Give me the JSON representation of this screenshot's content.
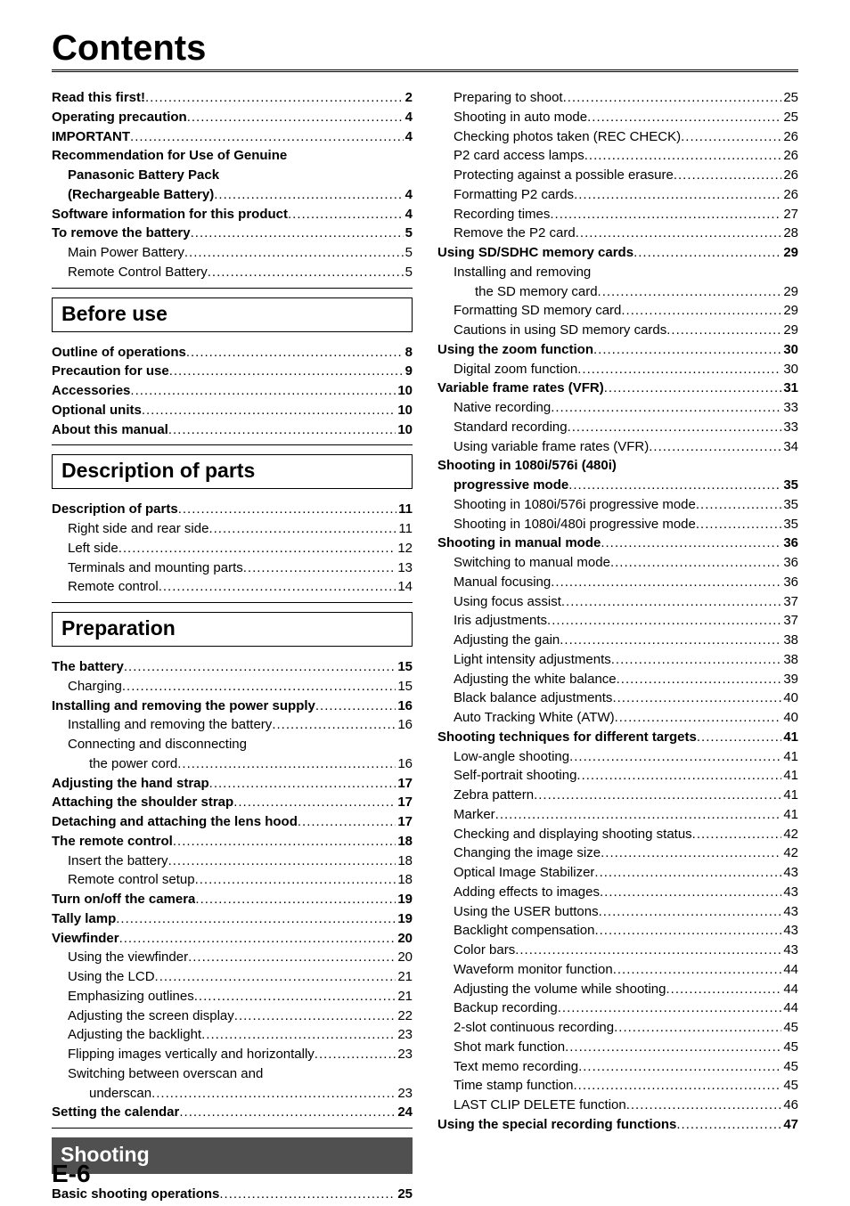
{
  "title": "Contents",
  "page_footer": "E-6",
  "columns": {
    "left": [
      {
        "type": "item",
        "text": "Read this first!",
        "page": "2",
        "bold": true,
        "indent": 0
      },
      {
        "type": "item",
        "text": "Operating precaution",
        "page": "4",
        "bold": true,
        "indent": 0
      },
      {
        "type": "item",
        "text": "IMPORTANT",
        "page": "4",
        "bold": true,
        "indent": 0
      },
      {
        "type": "textonly",
        "text": "Recommendation for Use of Genuine",
        "bold": true,
        "indent": 0
      },
      {
        "type": "textonly",
        "text": "Panasonic Battery Pack",
        "bold": true,
        "indent": 1
      },
      {
        "type": "item",
        "text": "(Rechargeable Battery)",
        "page": "4",
        "bold": true,
        "indent": 1
      },
      {
        "type": "item",
        "text": "Software information for this product",
        "page": "4",
        "bold": true,
        "indent": 0
      },
      {
        "type": "item",
        "text": "To remove the battery",
        "page": "5",
        "bold": true,
        "indent": 0
      },
      {
        "type": "item",
        "text": "Main Power Battery",
        "page": "5",
        "bold": false,
        "indent": 1
      },
      {
        "type": "item",
        "text": "Remote Control Battery",
        "page": "5",
        "bold": false,
        "indent": 1
      },
      {
        "type": "rule"
      },
      {
        "type": "section",
        "text": "Before use",
        "filled": false
      },
      {
        "type": "item",
        "text": "Outline of operations",
        "page": "8",
        "bold": true,
        "indent": 0
      },
      {
        "type": "item",
        "text": "Precaution for use",
        "page": "9",
        "bold": true,
        "indent": 0
      },
      {
        "type": "item",
        "text": "Accessories",
        "page": "10",
        "bold": true,
        "indent": 0
      },
      {
        "type": "item",
        "text": "Optional units",
        "page": "10",
        "bold": true,
        "indent": 0
      },
      {
        "type": "item",
        "text": "About this manual",
        "page": "10",
        "bold": true,
        "indent": 0
      },
      {
        "type": "rule"
      },
      {
        "type": "section",
        "text": "Description of parts",
        "filled": false
      },
      {
        "type": "item",
        "text": "Description of parts",
        "page": "11",
        "bold": true,
        "indent": 0
      },
      {
        "type": "item",
        "text": "Right side and rear side",
        "page": "11",
        "bold": false,
        "indent": 1
      },
      {
        "type": "item",
        "text": "Left side",
        "page": "12",
        "bold": false,
        "indent": 1
      },
      {
        "type": "item",
        "text": "Terminals and mounting parts",
        "page": "13",
        "bold": false,
        "indent": 1
      },
      {
        "type": "item",
        "text": "Remote control",
        "page": "14",
        "bold": false,
        "indent": 1
      },
      {
        "type": "rule"
      },
      {
        "type": "section",
        "text": "Preparation",
        "filled": false
      },
      {
        "type": "item",
        "text": "The battery",
        "page": "15",
        "bold": true,
        "indent": 0
      },
      {
        "type": "item",
        "text": "Charging",
        "page": "15",
        "bold": false,
        "indent": 1
      },
      {
        "type": "item",
        "text": "Installing and removing the power supply",
        "page": "16",
        "bold": true,
        "indent": 0
      },
      {
        "type": "item",
        "text": "Installing and removing the battery",
        "page": "16",
        "bold": false,
        "indent": 1
      },
      {
        "type": "textonly",
        "text": "Connecting and disconnecting",
        "bold": false,
        "indent": 1
      },
      {
        "type": "item",
        "text": "the power cord",
        "page": "16",
        "bold": false,
        "indent": 2
      },
      {
        "type": "item",
        "text": "Adjusting the hand strap",
        "page": "17",
        "bold": true,
        "indent": 0
      },
      {
        "type": "item",
        "text": "Attaching the shoulder strap",
        "page": "17",
        "bold": true,
        "indent": 0
      },
      {
        "type": "item",
        "text": "Detaching and attaching the lens hood",
        "page": "17",
        "bold": true,
        "indent": 0
      },
      {
        "type": "item",
        "text": "The remote control",
        "page": "18",
        "bold": true,
        "indent": 0
      },
      {
        "type": "item",
        "text": "Insert the battery",
        "page": "18",
        "bold": false,
        "indent": 1
      },
      {
        "type": "item",
        "text": "Remote control setup",
        "page": "18",
        "bold": false,
        "indent": 1
      },
      {
        "type": "item",
        "text": "Turn on/off the camera",
        "page": "19",
        "bold": true,
        "indent": 0
      },
      {
        "type": "item",
        "text": "Tally lamp",
        "page": "19",
        "bold": true,
        "indent": 0
      },
      {
        "type": "item",
        "text": "Viewfinder",
        "page": "20",
        "bold": true,
        "indent": 0
      },
      {
        "type": "item",
        "text": "Using the viewfinder",
        "page": "20",
        "bold": false,
        "indent": 1
      },
      {
        "type": "item",
        "text": "Using the LCD",
        "page": "21",
        "bold": false,
        "indent": 1
      },
      {
        "type": "item",
        "text": "Emphasizing outlines",
        "page": "21",
        "bold": false,
        "indent": 1
      },
      {
        "type": "item",
        "text": "Adjusting the screen display",
        "page": "22",
        "bold": false,
        "indent": 1
      },
      {
        "type": "item",
        "text": "Adjusting the backlight",
        "page": "23",
        "bold": false,
        "indent": 1
      },
      {
        "type": "item",
        "text": "Flipping images vertically and horizontally",
        "page": "23",
        "bold": false,
        "indent": 1
      },
      {
        "type": "textonly",
        "text": "Switching between overscan and",
        "bold": false,
        "indent": 1
      },
      {
        "type": "item",
        "text": "underscan",
        "page": "23",
        "bold": false,
        "indent": 2
      },
      {
        "type": "item",
        "text": "Setting the calendar",
        "page": "24",
        "bold": true,
        "indent": 0
      },
      {
        "type": "rule"
      },
      {
        "type": "section",
        "text": "Shooting",
        "filled": true
      },
      {
        "type": "item",
        "text": "Basic shooting operations",
        "page": "25",
        "bold": true,
        "indent": 0
      }
    ],
    "right": [
      {
        "type": "item",
        "text": "Preparing to shoot",
        "page": "25",
        "bold": false,
        "indent": 1
      },
      {
        "type": "item",
        "text": "Shooting in auto mode",
        "page": "25",
        "bold": false,
        "indent": 1
      },
      {
        "type": "item",
        "text": "Checking photos taken (REC CHECK)",
        "page": "26",
        "bold": false,
        "indent": 1
      },
      {
        "type": "item",
        "text": "P2 card access lamps",
        "page": "26",
        "bold": false,
        "indent": 1
      },
      {
        "type": "item",
        "text": "Protecting against a possible erasure",
        "page": "26",
        "bold": false,
        "indent": 1
      },
      {
        "type": "item",
        "text": "Formatting P2 cards",
        "page": "26",
        "bold": false,
        "indent": 1
      },
      {
        "type": "item",
        "text": "Recording times",
        "page": "27",
        "bold": false,
        "indent": 1
      },
      {
        "type": "item",
        "text": "Remove the P2 card",
        "page": "28",
        "bold": false,
        "indent": 1
      },
      {
        "type": "item",
        "text": "Using SD/SDHC memory cards",
        "page": "29",
        "bold": true,
        "indent": 0
      },
      {
        "type": "textonly",
        "text": "Installing and removing",
        "bold": false,
        "indent": 1
      },
      {
        "type": "item",
        "text": "the SD memory card",
        "page": "29",
        "bold": false,
        "indent": 2
      },
      {
        "type": "item",
        "text": "Formatting SD memory card",
        "page": "29",
        "bold": false,
        "indent": 1
      },
      {
        "type": "item",
        "text": "Cautions in using SD memory cards",
        "page": "29",
        "bold": false,
        "indent": 1
      },
      {
        "type": "item",
        "text": "Using the zoom function",
        "page": "30",
        "bold": true,
        "indent": 0
      },
      {
        "type": "item",
        "text": "Digital zoom function",
        "page": "30",
        "bold": false,
        "indent": 1
      },
      {
        "type": "item",
        "text": "Variable frame rates (VFR)",
        "page": "31",
        "bold": true,
        "indent": 0
      },
      {
        "type": "item",
        "text": "Native recording",
        "page": "33",
        "bold": false,
        "indent": 1
      },
      {
        "type": "item",
        "text": "Standard recording",
        "page": "33",
        "bold": false,
        "indent": 1
      },
      {
        "type": "item",
        "text": "Using variable frame rates (VFR)",
        "page": "34",
        "bold": false,
        "indent": 1
      },
      {
        "type": "textonly",
        "text": "Shooting in 1080i/576i (480i)",
        "bold": true,
        "indent": 0
      },
      {
        "type": "item",
        "text": "progressive mode",
        "page": "35",
        "bold": true,
        "indent": 1
      },
      {
        "type": "item",
        "text": "Shooting in 1080i/576i progressive mode",
        "page": "35",
        "bold": false,
        "indent": 1
      },
      {
        "type": "item",
        "text": "Shooting in 1080i/480i progressive mode",
        "page": "35",
        "bold": false,
        "indent": 1
      },
      {
        "type": "item",
        "text": "Shooting in manual mode",
        "page": "36",
        "bold": true,
        "indent": 0
      },
      {
        "type": "item",
        "text": "Switching to manual mode",
        "page": "36",
        "bold": false,
        "indent": 1
      },
      {
        "type": "item",
        "text": "Manual focusing",
        "page": "36",
        "bold": false,
        "indent": 1
      },
      {
        "type": "item",
        "text": "Using focus assist",
        "page": "37",
        "bold": false,
        "indent": 1
      },
      {
        "type": "item",
        "text": "Iris adjustments",
        "page": "37",
        "bold": false,
        "indent": 1
      },
      {
        "type": "item",
        "text": "Adjusting the gain",
        "page": "38",
        "bold": false,
        "indent": 1
      },
      {
        "type": "item",
        "text": "Light intensity adjustments",
        "page": "38",
        "bold": false,
        "indent": 1
      },
      {
        "type": "item",
        "text": "Adjusting the white balance",
        "page": "39",
        "bold": false,
        "indent": 1
      },
      {
        "type": "item",
        "text": "Black balance adjustments",
        "page": "40",
        "bold": false,
        "indent": 1
      },
      {
        "type": "item",
        "text": "Auto Tracking White (ATW)",
        "page": "40",
        "bold": false,
        "indent": 1
      },
      {
        "type": "item",
        "text": "Shooting techniques for different targets",
        "page": "41",
        "bold": true,
        "indent": 0
      },
      {
        "type": "item",
        "text": "Low-angle shooting",
        "page": "41",
        "bold": false,
        "indent": 1
      },
      {
        "type": "item",
        "text": "Self-portrait shooting",
        "page": "41",
        "bold": false,
        "indent": 1
      },
      {
        "type": "item",
        "text": "Zebra pattern",
        "page": "41",
        "bold": false,
        "indent": 1
      },
      {
        "type": "item",
        "text": "Marker",
        "page": "41",
        "bold": false,
        "indent": 1
      },
      {
        "type": "item",
        "text": "Checking and displaying shooting status",
        "page": "42",
        "bold": false,
        "indent": 1
      },
      {
        "type": "item",
        "text": "Changing the image size",
        "page": "42",
        "bold": false,
        "indent": 1
      },
      {
        "type": "item",
        "text": "Optical Image Stabilizer",
        "page": "43",
        "bold": false,
        "indent": 1
      },
      {
        "type": "item",
        "text": "Adding effects to images",
        "page": "43",
        "bold": false,
        "indent": 1
      },
      {
        "type": "item",
        "text": "Using the USER buttons",
        "page": "43",
        "bold": false,
        "indent": 1
      },
      {
        "type": "item",
        "text": "Backlight compensation",
        "page": "43",
        "bold": false,
        "indent": 1
      },
      {
        "type": "item",
        "text": "Color bars",
        "page": "43",
        "bold": false,
        "indent": 1
      },
      {
        "type": "item",
        "text": "Waveform monitor function",
        "page": "44",
        "bold": false,
        "indent": 1
      },
      {
        "type": "item",
        "text": "Adjusting the volume while shooting",
        "page": "44",
        "bold": false,
        "indent": 1
      },
      {
        "type": "item",
        "text": "Backup recording",
        "page": "44",
        "bold": false,
        "indent": 1
      },
      {
        "type": "item",
        "text": "2-slot continuous recording",
        "page": "45",
        "bold": false,
        "indent": 1
      },
      {
        "type": "item",
        "text": "Shot mark function",
        "page": "45",
        "bold": false,
        "indent": 1
      },
      {
        "type": "item",
        "text": "Text memo recording",
        "page": "45",
        "bold": false,
        "indent": 1
      },
      {
        "type": "item",
        "text": "Time stamp function",
        "page": "45",
        "bold": false,
        "indent": 1
      },
      {
        "type": "item",
        "text": "LAST CLIP DELETE function",
        "page": "46",
        "bold": false,
        "indent": 1
      },
      {
        "type": "item",
        "text": "Using the special recording functions",
        "page": "47",
        "bold": true,
        "indent": 0
      }
    ]
  }
}
